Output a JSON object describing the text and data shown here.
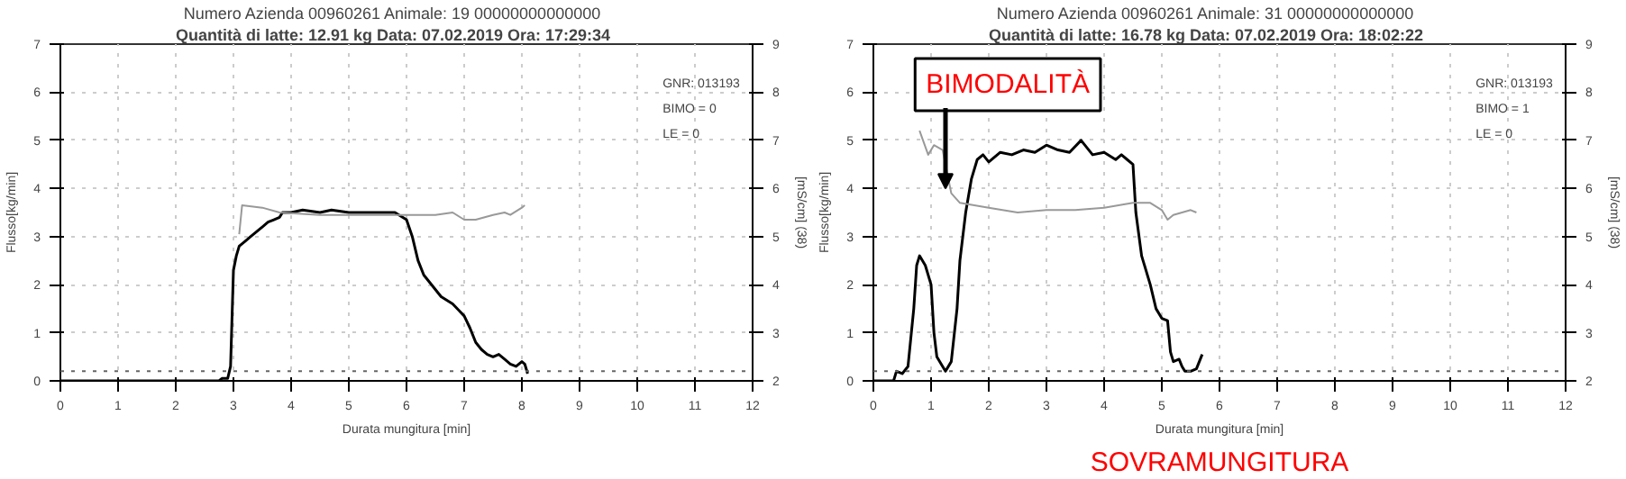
{
  "chart_data": [
    {
      "type": "line",
      "title": "Numero Azienda 00960261    Animale: 19    00000000000000",
      "subtitle": "Quantità di latte: 12.91 kg    Data: 07.02.2019    Ora: 17:29:34",
      "xlabel": "Durata mungitura [min]",
      "ylabel": "Flusso[kg/min]",
      "y2label": "[mS/cm] (38)",
      "xlim": [
        0,
        12
      ],
      "xticks": [
        0,
        1,
        2,
        3,
        4,
        5,
        6,
        7,
        8,
        9,
        10,
        11,
        12
      ],
      "ylim": [
        0,
        7
      ],
      "yticks": [
        0,
        1,
        2,
        3,
        4,
        5,
        6,
        7
      ],
      "y2lim": [
        2,
        9
      ],
      "y2ticks": [
        2,
        3,
        4,
        5,
        6,
        7,
        8,
        9
      ],
      "grid": true,
      "annotations": [
        "GNR: 013193",
        "BIMO = 0",
        "LE    = 0"
      ],
      "ref_lines": [
        {
          "axis": "y",
          "value": 0.2,
          "label": null,
          "color": "#666666",
          "line_style": "dotted"
        }
      ],
      "series": [
        {
          "color": "#000000",
          "x": [
            0,
            0.5,
            1,
            1.5,
            2,
            2.5,
            2.75,
            2.8,
            2.9,
            2.95,
            3.0,
            3.05,
            3.1,
            3.2,
            3.3,
            3.4,
            3.5,
            3.6,
            3.7,
            3.8,
            3.85,
            4.0,
            4.2,
            4.5,
            4.7,
            5.0,
            5.2,
            5.5,
            5.8,
            6.0,
            6.1,
            6.2,
            6.3,
            6.5,
            6.6,
            6.8,
            7.0,
            7.1,
            7.2,
            7.3,
            7.4,
            7.5,
            7.6,
            7.7,
            7.8,
            7.9,
            8.0,
            8.05,
            8.1
          ],
          "values": [
            0,
            0,
            0,
            0,
            0,
            0,
            0,
            0.05,
            0.05,
            0.3,
            2.3,
            2.6,
            2.8,
            2.9,
            3.0,
            3.1,
            3.2,
            3.3,
            3.35,
            3.4,
            3.5,
            3.5,
            3.55,
            3.5,
            3.55,
            3.5,
            3.5,
            3.5,
            3.5,
            3.35,
            3.0,
            2.5,
            2.2,
            1.9,
            1.75,
            1.6,
            1.35,
            1.1,
            0.8,
            0.65,
            0.55,
            0.5,
            0.55,
            0.45,
            0.35,
            0.3,
            0.4,
            0.35,
            0.15
          ]
        },
        {
          "color": "#999999",
          "axis": "y2",
          "x": [
            3.1,
            3.15,
            3.5,
            3.8,
            4.5,
            5.5,
            6.0,
            6.5,
            6.8,
            7.0,
            7.2,
            7.5,
            7.7,
            7.8,
            8.0,
            8.05
          ],
          "values": [
            5.05,
            5.65,
            5.6,
            5.5,
            5.45,
            5.45,
            5.45,
            5.45,
            5.5,
            5.35,
            5.35,
            5.45,
            5.5,
            5.45,
            5.6,
            5.65
          ]
        }
      ]
    },
    {
      "type": "line",
      "title": "Numero Azienda 00960261    Animale: 31    00000000000000",
      "subtitle": "Quantità di latte: 16.78 kg    Data: 07.02.2019    Ora: 18:02:22",
      "xlabel": "Durata mungitura [min]",
      "ylabel": "Flusso[kg/min]",
      "y2label": "[mS/cm] (38)",
      "xlim": [
        0,
        12
      ],
      "xticks": [
        0,
        1,
        2,
        3,
        4,
        5,
        6,
        7,
        8,
        9,
        10,
        11,
        12
      ],
      "ylim": [
        0,
        7
      ],
      "yticks": [
        0,
        1,
        2,
        3,
        4,
        5,
        6,
        7
      ],
      "y2lim": [
        2,
        9
      ],
      "y2ticks": [
        2,
        3,
        4,
        5,
        6,
        7,
        8,
        9
      ],
      "grid": true,
      "annotations": [
        "GNR: 013193",
        "BIMO = 1",
        "LE    = 0",
        {
          "text": "BIMODALITÀ",
          "x": 1.25,
          "y": 4.0
        },
        "SOVRAMUNGITURA"
      ],
      "ref_lines": [
        {
          "axis": "y",
          "value": 0.2,
          "label": null,
          "color": "#666666",
          "line_style": "dotted"
        }
      ],
      "series": [
        {
          "color": "#000000",
          "x": [
            0,
            0.2,
            0.35,
            0.4,
            0.5,
            0.6,
            0.7,
            0.75,
            0.8,
            0.9,
            1.0,
            1.05,
            1.1,
            1.2,
            1.25,
            1.35,
            1.45,
            1.5,
            1.6,
            1.7,
            1.8,
            1.9,
            2.0,
            2.2,
            2.4,
            2.6,
            2.8,
            3.0,
            3.2,
            3.4,
            3.6,
            3.8,
            4.0,
            4.2,
            4.3,
            4.4,
            4.5,
            4.55,
            4.65,
            4.8,
            4.9,
            5.0,
            5.1,
            5.15,
            5.2,
            5.3,
            5.35,
            5.4,
            5.5,
            5.6,
            5.7
          ],
          "values": [
            0,
            0,
            0,
            0.2,
            0.15,
            0.3,
            1.5,
            2.4,
            2.6,
            2.4,
            2.0,
            1.0,
            0.5,
            0.3,
            0.2,
            0.4,
            1.5,
            2.5,
            3.5,
            4.2,
            4.6,
            4.7,
            4.55,
            4.75,
            4.7,
            4.8,
            4.75,
            4.9,
            4.8,
            4.75,
            5.0,
            4.7,
            4.75,
            4.6,
            4.7,
            4.6,
            4.5,
            3.5,
            2.6,
            2.0,
            1.5,
            1.3,
            1.25,
            0.6,
            0.4,
            0.45,
            0.3,
            0.2,
            0.2,
            0.25,
            0.55
          ]
        },
        {
          "color": "#999999",
          "axis": "y2",
          "x": [
            0.8,
            0.95,
            1.05,
            1.2,
            1.35,
            1.5,
            2.0,
            2.5,
            3.0,
            3.5,
            4.0,
            4.5,
            4.8,
            5.0,
            5.1,
            5.2,
            5.5,
            5.6
          ],
          "values": [
            7.2,
            6.7,
            6.9,
            6.8,
            5.9,
            5.7,
            5.6,
            5.5,
            5.55,
            5.55,
            5.6,
            5.7,
            5.7,
            5.55,
            5.35,
            5.45,
            5.55,
            5.5
          ]
        }
      ]
    }
  ]
}
